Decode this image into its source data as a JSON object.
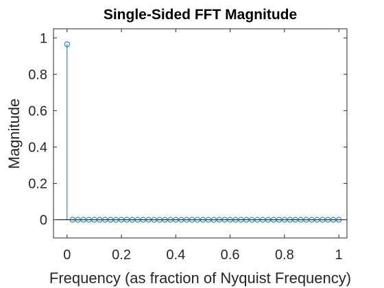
{
  "chart_data": {
    "type": "stem",
    "title": "Single-Sided FFT Magnitude",
    "xlabel": "Frequency (as fraction of Nyquist Frequency)",
    "ylabel": "Magnitude",
    "xlim": [
      -0.05,
      1.03
    ],
    "ylim": [
      -0.1,
      1.05
    ],
    "xticks": [
      0,
      0.2,
      0.4,
      0.6,
      0.8,
      1
    ],
    "xtick_labels": [
      "0",
      "0.2",
      "0.4",
      "0.6",
      "0.8",
      "1"
    ],
    "yticks": [
      0,
      0.2,
      0.4,
      0.6,
      0.8,
      1
    ],
    "ytick_labels": [
      "0",
      "0.2",
      "0.4",
      "0.6",
      "0.8",
      "1"
    ],
    "grid": false,
    "baseline": 0,
    "series_color": "#0072BD",
    "x_step": 0.02,
    "values": [
      0.965,
      0,
      0,
      0,
      0,
      0,
      0,
      0,
      0,
      0,
      0,
      0,
      0,
      0,
      0,
      0,
      0,
      0,
      0,
      0,
      0,
      0,
      0,
      0,
      0,
      0,
      0,
      0,
      0,
      0,
      0,
      0,
      0,
      0,
      0,
      0,
      0,
      0,
      0,
      0,
      0,
      0,
      0,
      0,
      0,
      0,
      0,
      0,
      0,
      0,
      0
    ]
  }
}
